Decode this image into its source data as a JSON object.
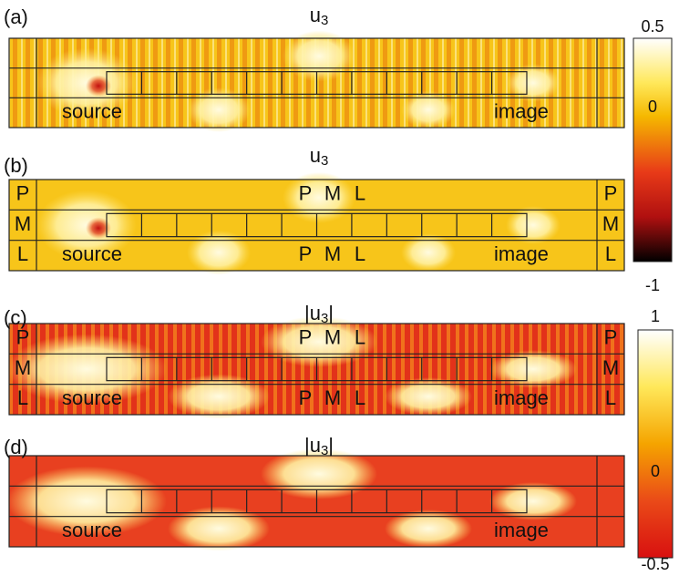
{
  "panels": [
    {
      "label": "(a)",
      "title": {
        "prefix": "u",
        "sub": "3"
      },
      "source": "source",
      "image": "image"
    },
    {
      "label": "(b)",
      "title": {
        "prefix": "u",
        "sub": "3"
      },
      "source": "source",
      "image": "image",
      "pml": [
        "P",
        "M",
        "L"
      ]
    },
    {
      "label": "(c)",
      "title": {
        "prefix": "|u",
        "sub": "3",
        "suffix": "|"
      },
      "source": "source",
      "image": "image",
      "pml": [
        "P",
        "M",
        "L"
      ]
    },
    {
      "label": "(d)",
      "title": {
        "prefix": "|u",
        "sub": "3",
        "suffix": "|"
      },
      "source": "source",
      "image": "image"
    }
  ],
  "colorbars": [
    {
      "ticks": [
        "0.5",
        "0",
        "-1"
      ]
    },
    {
      "ticks": [
        "1",
        "0",
        "-0.5"
      ]
    }
  ]
}
